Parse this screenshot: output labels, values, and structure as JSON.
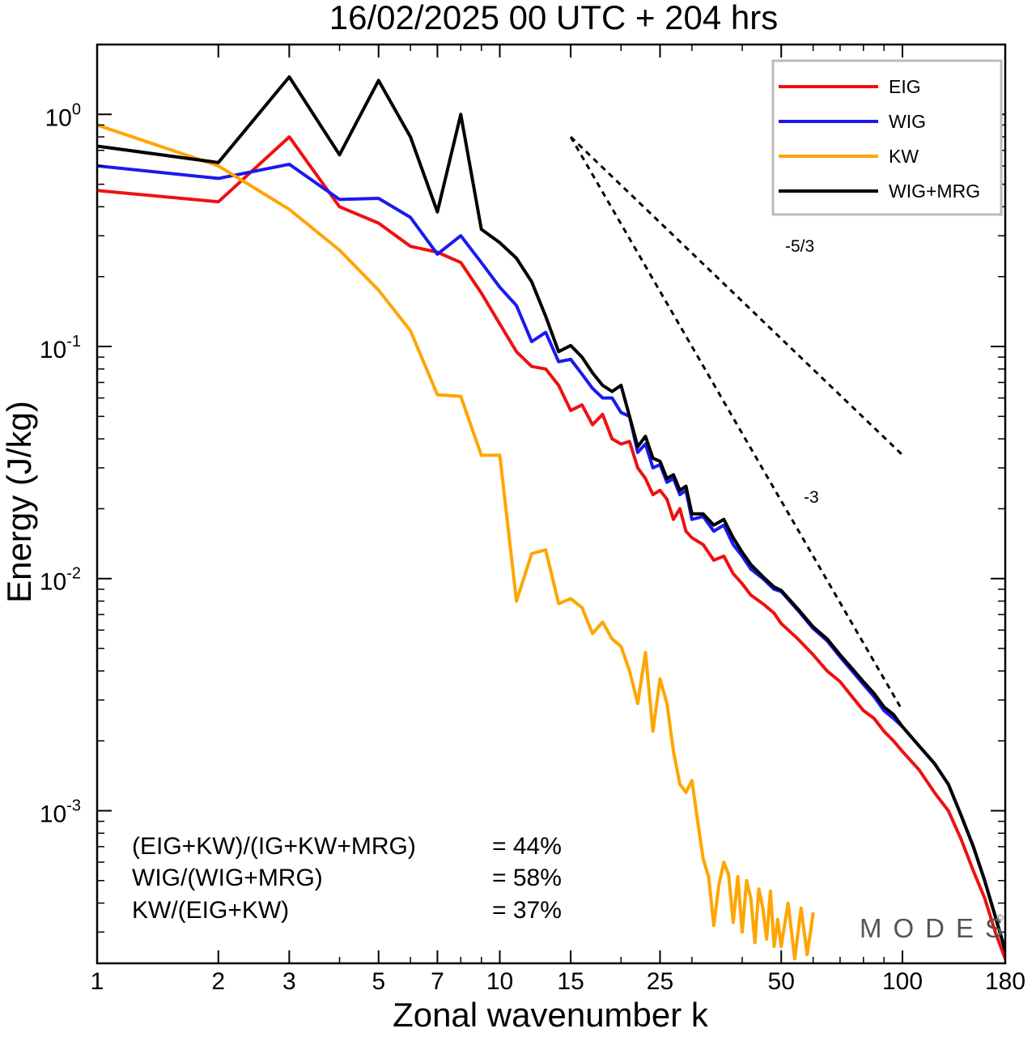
{
  "chart_data": {
    "type": "line",
    "title": "16/02/2025  00 UTC  + 204 hrs",
    "xlabel": "Zonal wavenumber k",
    "ylabel": "Energy (J/kg)",
    "xscale": "log",
    "yscale": "log",
    "xlim": [
      1,
      180
    ],
    "ylim": [
      0.00022,
      2.0
    ],
    "x_ticks": [
      {
        "value": 1,
        "label": "1"
      },
      {
        "value": 2,
        "label": "2"
      },
      {
        "value": 3,
        "label": "3"
      },
      {
        "value": 5,
        "label": "5"
      },
      {
        "value": 7,
        "label": "7"
      },
      {
        "value": 10,
        "label": "10"
      },
      {
        "value": 15,
        "label": "15"
      },
      {
        "value": 25,
        "label": "25"
      },
      {
        "value": 50,
        "label": "50"
      },
      {
        "value": 100,
        "label": "100"
      },
      {
        "value": 180,
        "label": "180"
      }
    ],
    "y_ticks": [
      {
        "value": 1,
        "base": "10",
        "exp": "0"
      },
      {
        "value": 0.1,
        "base": "10",
        "exp": "-1"
      },
      {
        "value": 0.01,
        "base": "10",
        "exp": "-2"
      },
      {
        "value": 0.001,
        "base": "10",
        "exp": "-3"
      }
    ],
    "grid": false,
    "legend_position": "top-right",
    "series": [
      {
        "name": "EIG",
        "color": "#ee1111",
        "x": [
          1,
          2,
          3,
          4,
          5,
          6,
          7,
          8,
          9,
          10,
          11,
          12,
          13,
          14,
          15,
          16,
          17,
          18,
          19,
          20,
          21,
          22,
          23,
          24,
          25,
          26,
          27,
          28,
          29,
          30,
          32,
          34,
          36,
          38,
          40,
          42,
          45,
          48,
          50,
          55,
          60,
          65,
          70,
          75,
          80,
          85,
          90,
          95,
          100,
          110,
          120,
          130,
          140,
          150,
          160,
          170,
          180
        ],
        "y": [
          0.47,
          0.42,
          0.8,
          0.4,
          0.34,
          0.27,
          0.255,
          0.23,
          0.17,
          0.125,
          0.095,
          0.082,
          0.08,
          0.068,
          0.053,
          0.056,
          0.046,
          0.051,
          0.04,
          0.038,
          0.039,
          0.03,
          0.027,
          0.023,
          0.024,
          0.022,
          0.018,
          0.02,
          0.016,
          0.015,
          0.014,
          0.012,
          0.0125,
          0.0105,
          0.0095,
          0.0085,
          0.0078,
          0.0071,
          0.0064,
          0.0055,
          0.0047,
          0.004,
          0.0036,
          0.0031,
          0.0027,
          0.0025,
          0.0022,
          0.002,
          0.0018,
          0.0015,
          0.0012,
          0.001,
          0.00075,
          0.00055,
          0.00042,
          0.0003,
          0.00023
        ]
      },
      {
        "name": "WIG",
        "color": "#1a1aee",
        "x": [
          1,
          2,
          3,
          4,
          5,
          6,
          7,
          8,
          9,
          10,
          11,
          12,
          13,
          14,
          15,
          16,
          17,
          18,
          19,
          20,
          21,
          22,
          23,
          24,
          25,
          26,
          27,
          28,
          29,
          30,
          32,
          34,
          36,
          38,
          40,
          42,
          45,
          48,
          50,
          55,
          60,
          65,
          70,
          75,
          80,
          85,
          90,
          95,
          100,
          110,
          120,
          130,
          140,
          150,
          160,
          170,
          180
        ],
        "y": [
          0.6,
          0.53,
          0.61,
          0.43,
          0.435,
          0.36,
          0.25,
          0.3,
          0.23,
          0.18,
          0.15,
          0.105,
          0.115,
          0.086,
          0.088,
          0.076,
          0.066,
          0.06,
          0.06,
          0.052,
          0.05,
          0.035,
          0.038,
          0.03,
          0.031,
          0.026,
          0.027,
          0.023,
          0.024,
          0.018,
          0.0185,
          0.016,
          0.017,
          0.014,
          0.0125,
          0.011,
          0.01,
          0.009,
          0.0088,
          0.0073,
          0.0061,
          0.0054,
          0.0046,
          0.004,
          0.0035,
          0.0031,
          0.0027,
          0.0025,
          0.0023,
          0.0019,
          0.0016,
          0.0013,
          0.00095,
          0.0007,
          0.0005,
          0.00035,
          0.00025
        ]
      },
      {
        "name": "KW",
        "color": "#ffa500",
        "x": [
          1,
          2,
          3,
          4,
          5,
          6,
          7,
          8,
          9,
          10,
          11,
          12,
          13,
          14,
          15,
          16,
          17,
          18,
          19,
          20,
          21,
          22,
          23,
          24,
          25,
          26,
          27,
          28,
          29,
          30,
          31,
          32,
          33,
          34,
          35,
          36,
          37,
          38,
          39,
          40,
          41,
          42,
          43,
          44,
          45,
          46,
          47,
          48,
          49,
          50,
          52,
          54,
          56,
          58,
          60
        ],
        "y": [
          0.9,
          0.6,
          0.39,
          0.26,
          0.175,
          0.117,
          0.062,
          0.061,
          0.034,
          0.034,
          0.008,
          0.0128,
          0.0133,
          0.0078,
          0.0082,
          0.0075,
          0.0058,
          0.0065,
          0.0055,
          0.0051,
          0.004,
          0.0029,
          0.0048,
          0.0022,
          0.0037,
          0.0029,
          0.0018,
          0.0013,
          0.0012,
          0.00135,
          0.0009,
          0.00062,
          0.00052,
          0.00032,
          0.00048,
          0.0006,
          0.00053,
          0.00033,
          0.00052,
          0.0003,
          0.0005,
          0.00042,
          0.00027,
          0.00046,
          0.00038,
          0.00028,
          0.00045,
          0.00026,
          0.00034,
          0.00026,
          0.0004,
          0.00023,
          0.00038,
          0.00024,
          0.00036
        ]
      },
      {
        "name": "WIG+MRG",
        "color": "#000000",
        "x": [
          1,
          2,
          3,
          4,
          5,
          6,
          7,
          8,
          9,
          10,
          11,
          12,
          13,
          14,
          15,
          16,
          17,
          18,
          19,
          20,
          21,
          22,
          23,
          24,
          25,
          26,
          27,
          28,
          29,
          30,
          32,
          34,
          36,
          38,
          40,
          42,
          45,
          48,
          50,
          55,
          60,
          65,
          70,
          75,
          80,
          85,
          90,
          95,
          100,
          110,
          120,
          130,
          140,
          150,
          160,
          170,
          180
        ],
        "y": [
          0.73,
          0.62,
          1.45,
          0.67,
          1.4,
          0.8,
          0.38,
          1.0,
          0.32,
          0.28,
          0.24,
          0.19,
          0.135,
          0.095,
          0.101,
          0.09,
          0.077,
          0.068,
          0.064,
          0.068,
          0.05,
          0.037,
          0.041,
          0.033,
          0.032,
          0.027,
          0.028,
          0.024,
          0.025,
          0.019,
          0.019,
          0.017,
          0.018,
          0.015,
          0.013,
          0.0115,
          0.0102,
          0.0092,
          0.0089,
          0.0074,
          0.0062,
          0.0055,
          0.0047,
          0.0041,
          0.0036,
          0.0032,
          0.0028,
          0.0026,
          0.0023,
          0.0019,
          0.0016,
          0.0013,
          0.00095,
          0.0007,
          0.0005,
          0.00035,
          0.00025
        ]
      }
    ],
    "reference_lines": [
      {
        "label": "-5/3",
        "x0": 15,
        "y0": 0.8,
        "x1": 100,
        "y1": 0.0341
      },
      {
        "label": "-3",
        "x0": 15,
        "y0": 0.8,
        "x1": 100,
        "y1": 0.0027
      }
    ],
    "annotations": [
      {
        "text": "(EIG+KW)/(IG+KW+MRG)",
        "value": "= 44%"
      },
      {
        "text": "WIG/(WIG+MRG)",
        "value": "= 58%"
      },
      {
        "text": "KW/(EIG+KW)",
        "value": "= 37%"
      }
    ]
  },
  "watermark": {
    "text": "MODES",
    "symbol": "©"
  }
}
